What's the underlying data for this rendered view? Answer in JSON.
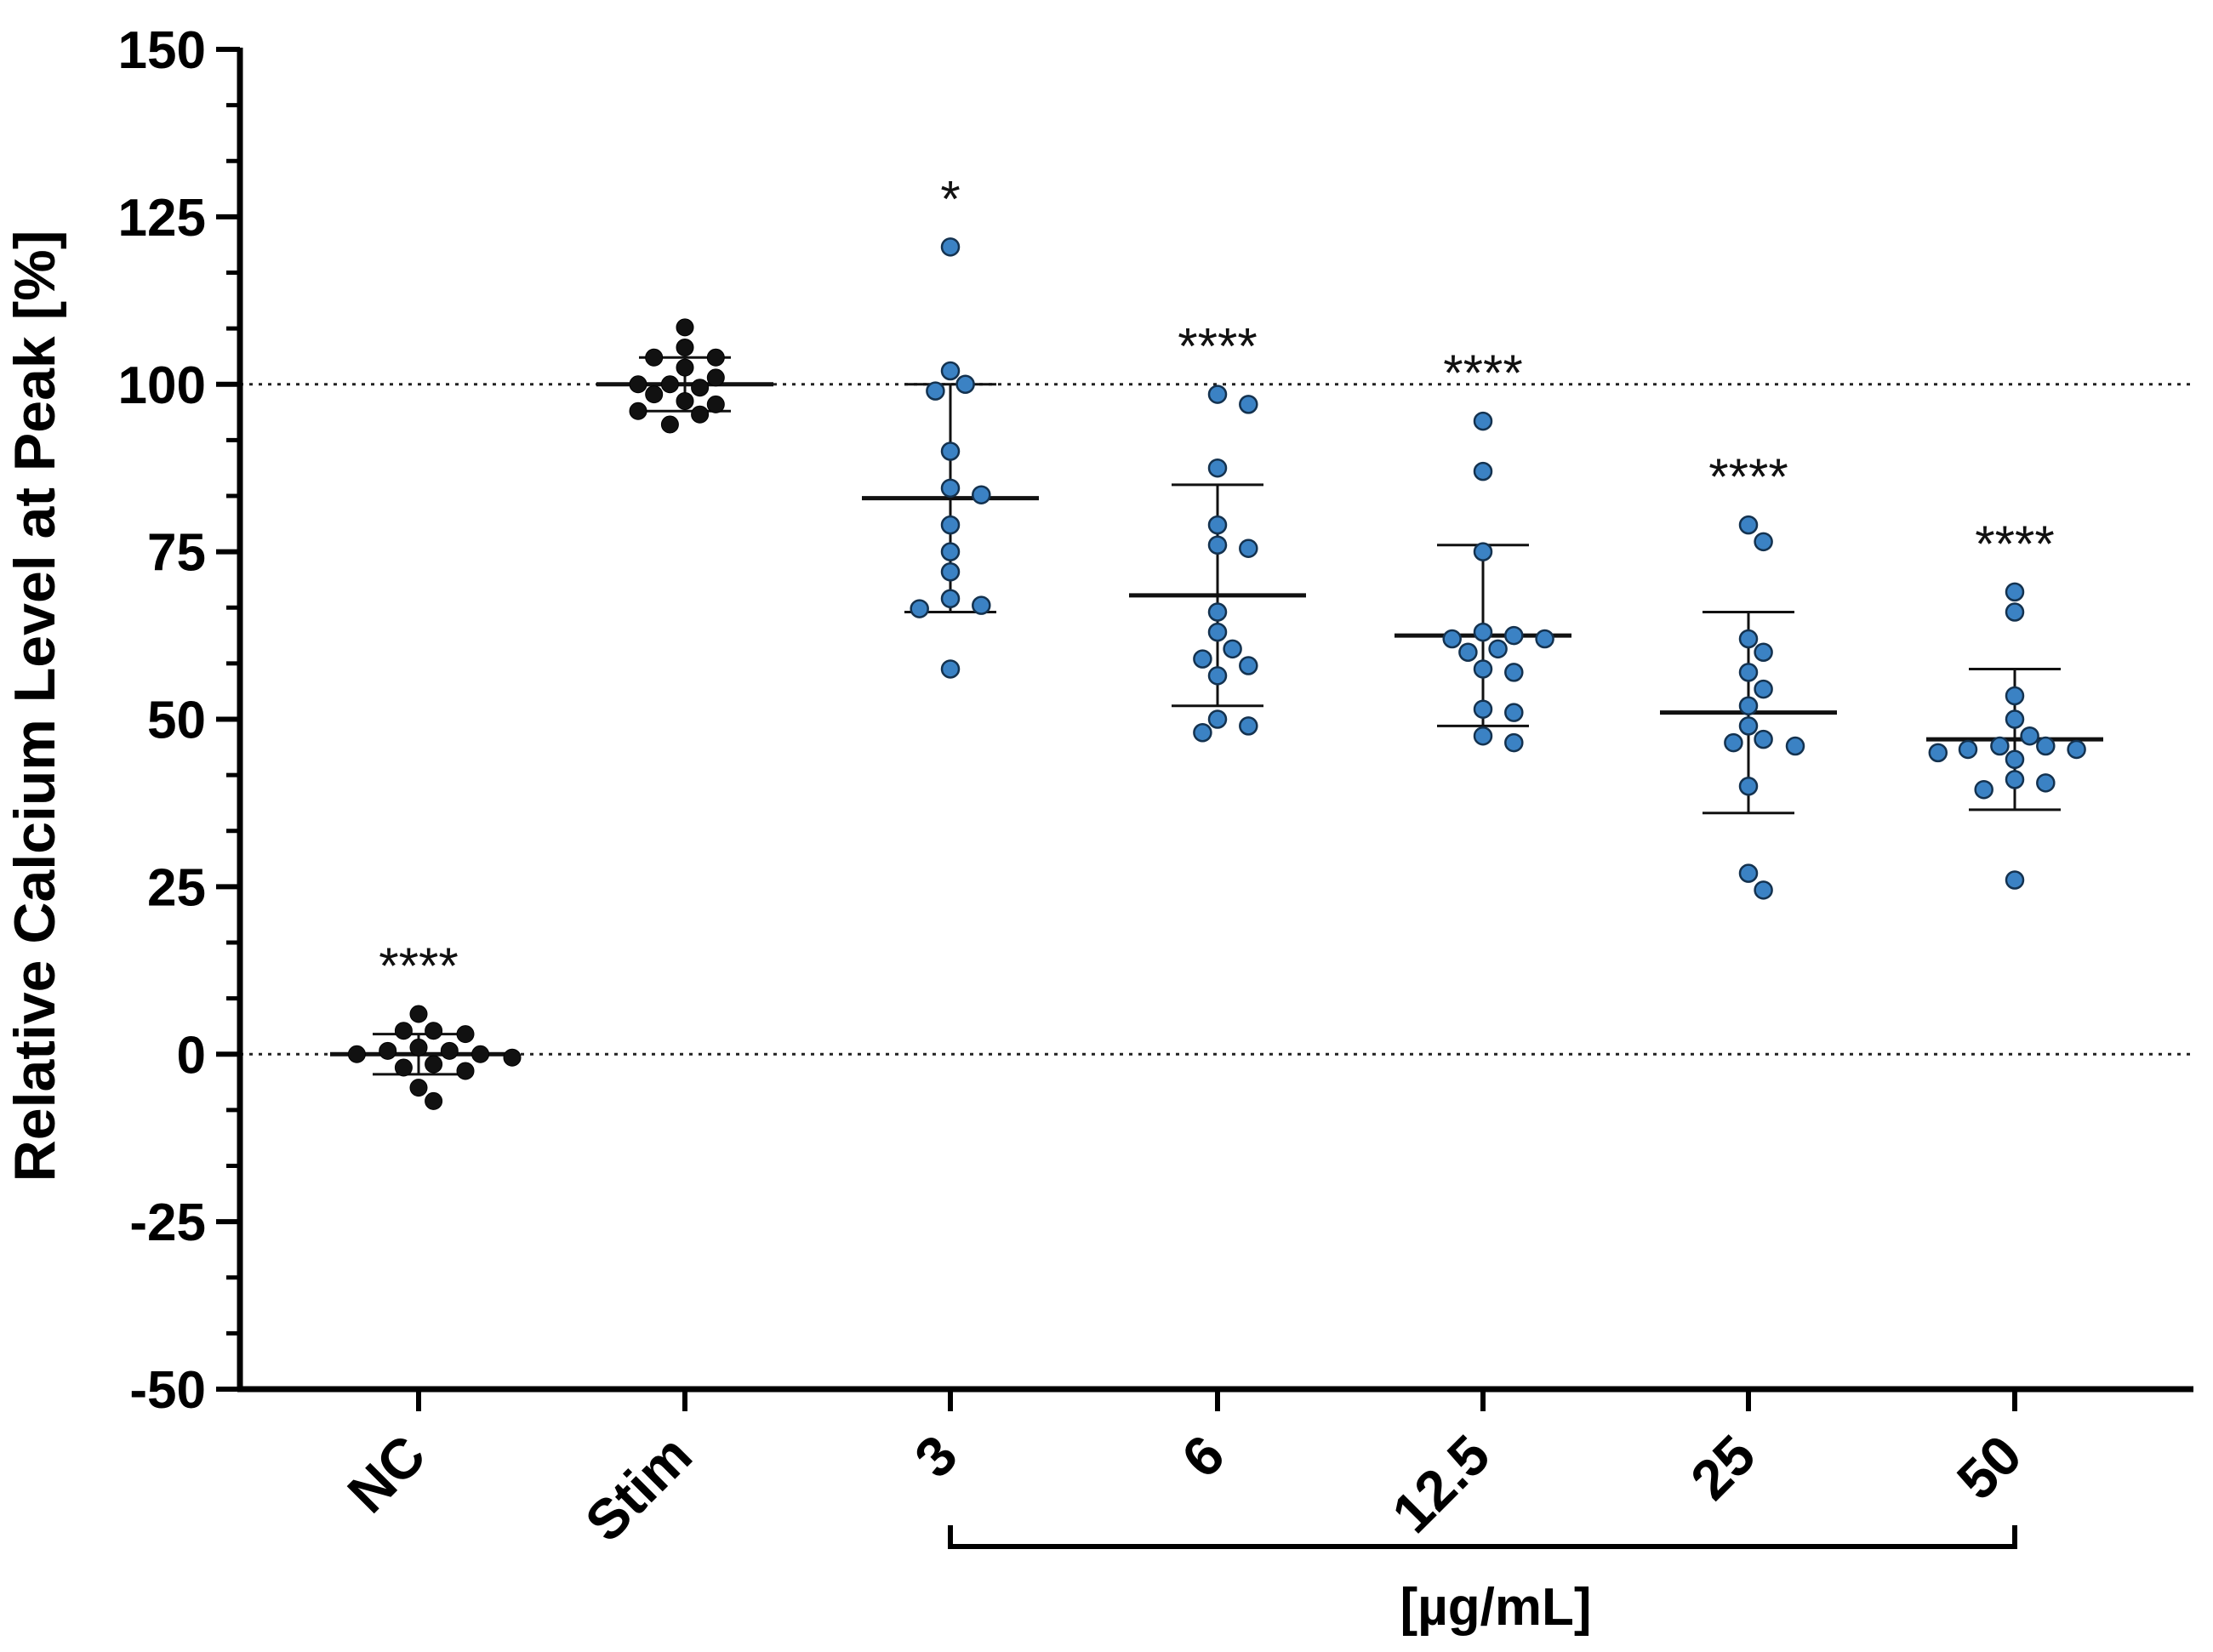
{
  "chart_data": {
    "type": "scatter",
    "title": "",
    "xlabel": "",
    "ylabel": "Relative Calcium Level at Peak [%]",
    "ylim": [
      -50,
      150
    ],
    "yticks": [
      -50,
      -25,
      0,
      25,
      50,
      75,
      100,
      125,
      150
    ],
    "ytick_labels": [
      "-50",
      "-25",
      "0",
      "25",
      "50",
      "75",
      "100",
      "125",
      "150"
    ],
    "reference_lines": [
      0,
      100
    ],
    "bracket_label": "[µg/mL]",
    "groups": [
      {
        "label": "NC",
        "color": "#111111",
        "mean": 0,
        "sd": 3.0,
        "significance": "****",
        "values": [
          6,
          3.5,
          3.5,
          3,
          1,
          0.5,
          0.5,
          0,
          0,
          -0.5,
          -1.5,
          -2,
          -2.5,
          -5,
          -7
        ]
      },
      {
        "label": "Stim",
        "color": "#111111",
        "mean": 100,
        "sd": 4.0,
        "significance": "",
        "values": [
          108.5,
          105.5,
          104,
          104,
          102.5,
          101,
          100,
          100,
          99.5,
          98.5,
          97.5,
          97,
          96,
          95.5,
          94
        ]
      },
      {
        "label": "3",
        "color": "#3b82c4",
        "mean": 83,
        "sd": 17,
        "significance": "*",
        "values": [
          120.5,
          102,
          100,
          99,
          90,
          84.5,
          83.5,
          79,
          75,
          72,
          68,
          67,
          66.5,
          57.5
        ]
      },
      {
        "label": "6",
        "color": "#3b82c4",
        "mean": 68.5,
        "sd": 16.5,
        "significance": "****",
        "values": [
          98.5,
          97,
          87.5,
          79,
          76,
          75.5,
          66,
          63,
          60.5,
          59,
          58,
          56.5,
          50,
          49,
          48
        ]
      },
      {
        "label": "12.5",
        "color": "#3b82c4",
        "mean": 62.5,
        "sd": 13.5,
        "significance": "****",
        "values": [
          94.5,
          87,
          75,
          63,
          62.5,
          62,
          62,
          60.5,
          60,
          57.5,
          57,
          51.5,
          51,
          47.5,
          46.5
        ]
      },
      {
        "label": "25",
        "color": "#3b82c4",
        "mean": 51,
        "sd": 15,
        "significance": "****",
        "values": [
          79,
          76.5,
          62,
          60,
          57,
          54.5,
          52,
          49,
          47,
          46.5,
          46,
          40,
          27,
          24.5
        ]
      },
      {
        "label": "50",
        "color": "#3b82c4",
        "mean": 47,
        "sd": 10.5,
        "significance": "****",
        "values": [
          69,
          66,
          53.5,
          50,
          47.5,
          46,
          46,
          45.5,
          45.5,
          45,
          44,
          41,
          40.5,
          39.5,
          26
        ]
      }
    ]
  }
}
